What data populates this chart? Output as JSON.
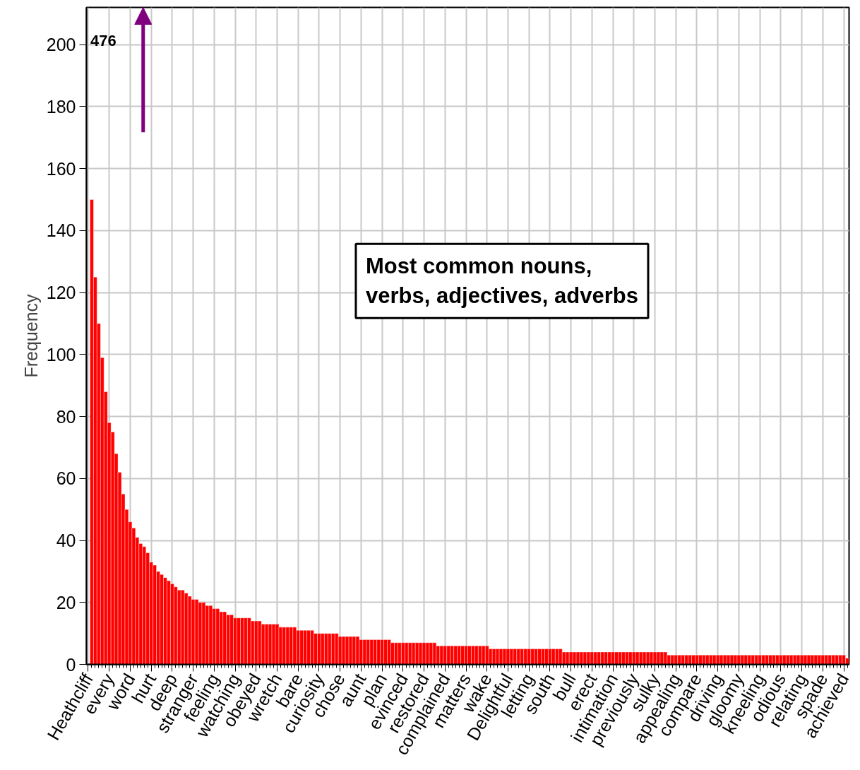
{
  "chart_data": {
    "type": "bar",
    "ylabel": "Frequency",
    "color": "#ff0000",
    "grid": true,
    "ylim": [
      0,
      212
    ],
    "yticks": [
      0,
      20,
      40,
      60,
      80,
      100,
      120,
      140,
      160,
      180,
      200
    ],
    "annotations": [
      "Most common nouns,\nverbs, adjectives, adverbs"
    ],
    "value_labels": [
      "476",
      null,
      null,
      null,
      null,
      null,
      null,
      null,
      null,
      null,
      null,
      null,
      null,
      null,
      null,
      null,
      null,
      null,
      null,
      null,
      null,
      null,
      null,
      null,
      null,
      null,
      null,
      null,
      null,
      null,
      null,
      null,
      null,
      null,
      null,
      null,
      null,
      null,
      null,
      null,
      null,
      null,
      null,
      null,
      null,
      null,
      null,
      null,
      null,
      null,
      null,
      null,
      null,
      null,
      null,
      null,
      null,
      null,
      null,
      null,
      null,
      null,
      null,
      null,
      null,
      null,
      null,
      null,
      null,
      null,
      null,
      null,
      null,
      null,
      null,
      null,
      null,
      null,
      null,
      null,
      null,
      null,
      null,
      null,
      null,
      null,
      null,
      null,
      null,
      null,
      null,
      null,
      null,
      null,
      null,
      null,
      null,
      null,
      null,
      null,
      null,
      null,
      null,
      null,
      null,
      null,
      null,
      null,
      null,
      null,
      null,
      null,
      null,
      null,
      null,
      null,
      null,
      null,
      null,
      null,
      null,
      null,
      null,
      null,
      null,
      null,
      null,
      null,
      null,
      null,
      null,
      null,
      null,
      null,
      null,
      null,
      null,
      null,
      null,
      null,
      null,
      null,
      null,
      null,
      null,
      null,
      null,
      null,
      null,
      null,
      null,
      null,
      null,
      null,
      null,
      null,
      null,
      null,
      null,
      null,
      null,
      null,
      null,
      null,
      null,
      null,
      null,
      null,
      null,
      null,
      null,
      null,
      null,
      null,
      null,
      null,
      null,
      null,
      null,
      null,
      null,
      null,
      null,
      null,
      null,
      null,
      null,
      null,
      null,
      null,
      null,
      null,
      null,
      null,
      null,
      null,
      null,
      null,
      null,
      null,
      null,
      null,
      null,
      null,
      null,
      null,
      null,
      null,
      null,
      null,
      null,
      null,
      null,
      null,
      null,
      null,
      null,
      null
    ],
    "categories": [
      "Heathcliff",
      null,
      null,
      null,
      null,
      null,
      "every",
      null,
      null,
      null,
      null,
      null,
      "word",
      null,
      null,
      null,
      null,
      null,
      "hurt",
      null,
      null,
      null,
      null,
      null,
      "deep",
      null,
      null,
      null,
      null,
      null,
      "stranger",
      null,
      null,
      null,
      null,
      null,
      "feeling",
      null,
      null,
      null,
      null,
      null,
      "watching",
      null,
      null,
      null,
      null,
      null,
      "obeyed",
      null,
      null,
      null,
      null,
      null,
      "wretch",
      null,
      null,
      null,
      null,
      null,
      "bare",
      null,
      null,
      null,
      null,
      null,
      "curiosity",
      null,
      null,
      null,
      null,
      null,
      "chose",
      null,
      null,
      null,
      null,
      null,
      "aunt",
      null,
      null,
      null,
      null,
      null,
      "plan",
      null,
      null,
      null,
      null,
      null,
      "evinced",
      null,
      null,
      null,
      null,
      null,
      "restored",
      null,
      null,
      null,
      null,
      null,
      "complained",
      null,
      null,
      null,
      null,
      null,
      "matters",
      null,
      null,
      null,
      null,
      null,
      "wake",
      null,
      null,
      null,
      null,
      null,
      "Delightful",
      null,
      null,
      null,
      null,
      null,
      "letting",
      null,
      null,
      null,
      null,
      null,
      "south",
      null,
      null,
      null,
      null,
      null,
      "bull",
      null,
      null,
      null,
      null,
      null,
      "erect",
      null,
      null,
      null,
      null,
      null,
      "intimation",
      null,
      null,
      null,
      null,
      null,
      "previously",
      null,
      null,
      null,
      null,
      null,
      "sulky",
      null,
      null,
      null,
      null,
      null,
      "appealing",
      null,
      null,
      null,
      null,
      null,
      "compare",
      null,
      null,
      null,
      null,
      null,
      "driving",
      null,
      null,
      null,
      null,
      null,
      "gloomy",
      null,
      null,
      null,
      null,
      null,
      "kneeling",
      null,
      null,
      null,
      null,
      null,
      "odious",
      null,
      null,
      null,
      null,
      null,
      "relating",
      null,
      null,
      null,
      null,
      null,
      "spade",
      null,
      null,
      null,
      null,
      null,
      "achieved",
      null
    ],
    "values": [
      null,
      150,
      125,
      110,
      99,
      88,
      78,
      75,
      68,
      62,
      55,
      50,
      46,
      44,
      41,
      39,
      38,
      36,
      33,
      32,
      30,
      29,
      28,
      27,
      26,
      25,
      24,
      24,
      23,
      22,
      21,
      21,
      20,
      20,
      19,
      19,
      18,
      18,
      17,
      17,
      16,
      16,
      15,
      15,
      15,
      15,
      15,
      14,
      14,
      14,
      13,
      13,
      13,
      13,
      13,
      12,
      12,
      12,
      12,
      12,
      11,
      11,
      11,
      11,
      11,
      10,
      10,
      10,
      10,
      10,
      10,
      10,
      9,
      9,
      9,
      9,
      9,
      9,
      8,
      8,
      8,
      8,
      8,
      8,
      8,
      8,
      8,
      7,
      7,
      7,
      7,
      7,
      7,
      7,
      7,
      7,
      7,
      7,
      7,
      7,
      6,
      6,
      6,
      6,
      6,
      6,
      6,
      6,
      6,
      6,
      6,
      6,
      6,
      6,
      6,
      5,
      5,
      5,
      5,
      5,
      5,
      5,
      5,
      5,
      5,
      5,
      5,
      5,
      5,
      5,
      5,
      5,
      5,
      5,
      5,
      5,
      4,
      4,
      4,
      4,
      4,
      4,
      4,
      4,
      4,
      4,
      4,
      4,
      4,
      4,
      4,
      4,
      4,
      4,
      4,
      4,
      4,
      4,
      4,
      4,
      4,
      4,
      4,
      4,
      4,
      4,
      3,
      3,
      3,
      3,
      3,
      3,
      3,
      3,
      3,
      3,
      3,
      3,
      3,
      3,
      3,
      3,
      3,
      3,
      3,
      3,
      3,
      3,
      3,
      3,
      3,
      3,
      3,
      3,
      3,
      3,
      3,
      3,
      3,
      3,
      3,
      3,
      3,
      3,
      3,
      3,
      3,
      3,
      3,
      3,
      3,
      3,
      3,
      3,
      3,
      3,
      3,
      2
    ]
  }
}
